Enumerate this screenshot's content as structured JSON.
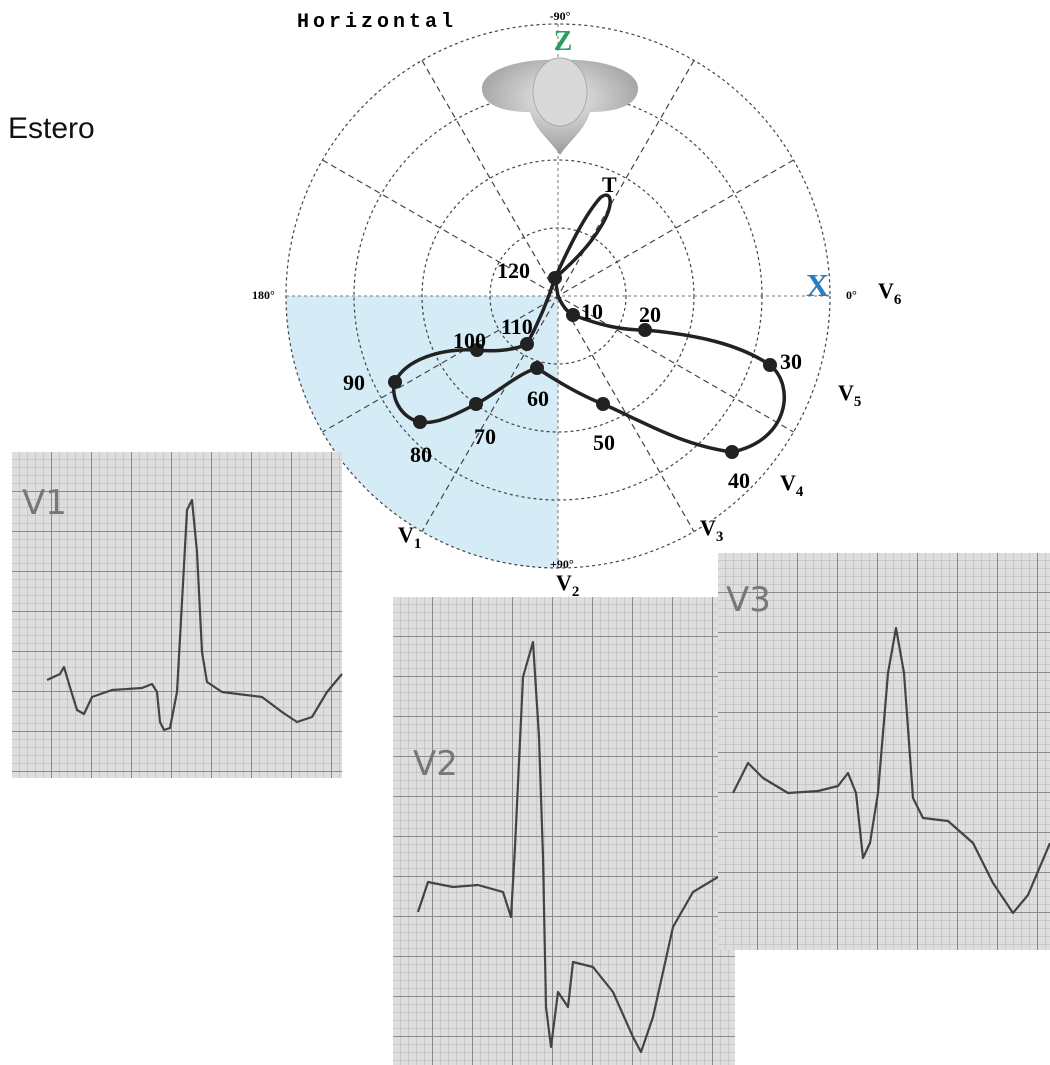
{
  "header": {
    "title": "Horizontal"
  },
  "side_label": "Estero",
  "polar": {
    "angles": {
      "top": "-90°",
      "left": "180°",
      "right": "0°",
      "bottom": "+90°"
    },
    "axes": {
      "z": "Z",
      "x": "X"
    },
    "t_label": "T",
    "leads": [
      {
        "letter": "V",
        "sub": "6"
      },
      {
        "letter": "V",
        "sub": "5"
      },
      {
        "letter": "V",
        "sub": "4"
      },
      {
        "letter": "V",
        "sub": "3"
      },
      {
        "letter": "V",
        "sub": "2"
      },
      {
        "letter": "V",
        "sub": "1"
      }
    ],
    "points": [
      10,
      20,
      30,
      40,
      50,
      60,
      70,
      80,
      90,
      100,
      110,
      120
    ]
  },
  "ecg_strips": [
    {
      "label": "V1"
    },
    {
      "label": "V2"
    },
    {
      "label": "V3"
    }
  ]
}
